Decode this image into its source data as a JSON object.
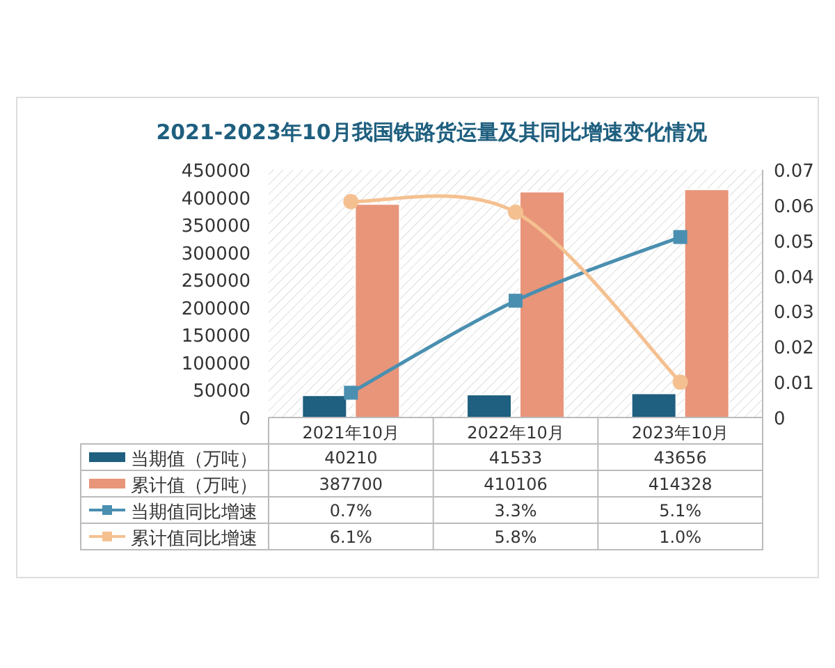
{
  "chart_data": {
    "type": "bar",
    "title": "2021-2023年10月我国铁路货运量及其同比增速变化情况",
    "categories": [
      "2021年10月",
      "2022年10月",
      "2023年10月"
    ],
    "series": [
      {
        "name": "当期值（万吨）",
        "color": "#1f5f7f",
        "values": [
          40210,
          41533,
          43656
        ]
      },
      {
        "name": "累计值（万吨）",
        "color": "#e8957a",
        "values": [
          387700,
          410106,
          414328
        ]
      },
      {
        "name": "当期值同比增速",
        "type": "line",
        "axis": "y2",
        "marker": "square",
        "color": "#4a8fb0",
        "values": [
          0.007,
          0.033,
          0.051
        ],
        "value_labels": [
          "0.7%",
          "3.3%",
          "5.1%"
        ]
      },
      {
        "name": "累计值同比增速",
        "type": "line",
        "axis": "y2",
        "marker": "circle",
        "color": "#f5c090",
        "values": [
          0.061,
          0.058,
          0.01
        ],
        "value_labels": [
          "6.1%",
          "5.8%",
          "1.0%"
        ]
      }
    ],
    "ylim": [
      0,
      450000
    ],
    "yticks": [
      0,
      50000,
      100000,
      150000,
      200000,
      250000,
      300000,
      350000,
      400000,
      450000
    ],
    "y2lim": [
      0,
      0.07
    ],
    "y2ticks": [
      0,
      0.01,
      0.02,
      0.03,
      0.04,
      0.05,
      0.06,
      0.07
    ],
    "data_labels": true,
    "legend": "bottom"
  }
}
